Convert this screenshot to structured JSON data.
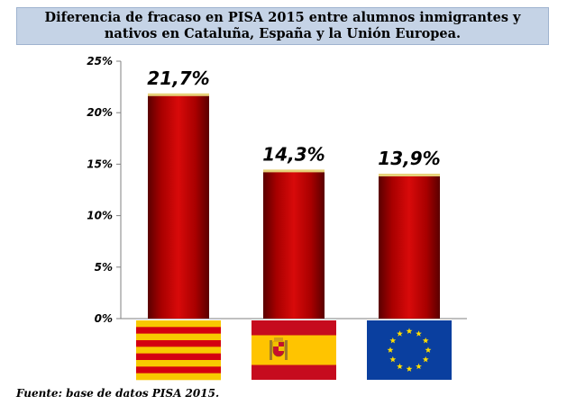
{
  "header": {
    "title_line1": "Diferencia de fracaso en PISA 2015 entre alumnos inmigrantes y",
    "title_line2": "nativos en Cataluña, España y la Unión Europea."
  },
  "footnote": "Fuente: base de datos PISA 2015.",
  "chart_data": {
    "type": "bar",
    "title": "Diferencia de fracaso en PISA 2015 entre alumnos inmigrantes y nativos en Cataluña, España y la Unión Europea.",
    "categories": [
      "catalonia-flag",
      "spain-flag",
      "eu-flag"
    ],
    "values": [
      21.7,
      14.3,
      13.9
    ],
    "data_labels": [
      "21,7%",
      "14,3%",
      "13,9%"
    ],
    "ylim": [
      0,
      25
    ],
    "yticks": [
      0,
      5,
      10,
      15,
      20,
      25
    ],
    "ytick_labels": [
      "0%",
      "5%",
      "10%",
      "15%",
      "20%",
      "25%"
    ],
    "grid": false,
    "legend": "none",
    "bar_color": "#b00000"
  }
}
